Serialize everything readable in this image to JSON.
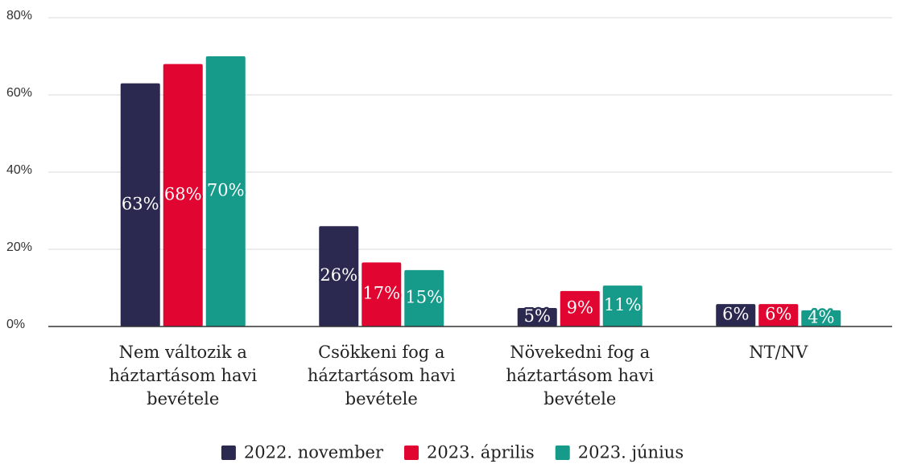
{
  "chart_data": {
    "type": "bar",
    "categories": [
      "Nem változik a háztartásom havi bevétele",
      "Csökkeni fog a háztartásom havi bevétele",
      "Növekedni fog a háztartásom havi bevétele",
      "NT/NV"
    ],
    "series": [
      {
        "name": "2022. november",
        "color": "#2b2950",
        "values": [
          63,
          26,
          4.8,
          5.8
        ],
        "value_labels": [
          "63%",
          "26%",
          "5%",
          "6%"
        ]
      },
      {
        "name": "2023. április",
        "color": "#e10531",
        "values": [
          68,
          16.6,
          9.2,
          5.8
        ],
        "value_labels": [
          "68%",
          "17%",
          "9%",
          "6%"
        ]
      },
      {
        "name": "2023. június",
        "color": "#169a8a",
        "values": [
          70,
          14.6,
          10.6,
          4.2
        ],
        "value_labels": [
          "70%",
          "15%",
          "11%",
          "4%"
        ]
      }
    ],
    "ylim": [
      0,
      80
    ],
    "yticks": [
      {
        "value": 0,
        "label": "0%"
      },
      {
        "value": 20,
        "label": "20%"
      },
      {
        "value": 40,
        "label": "40%"
      },
      {
        "value": 60,
        "label": "60%"
      },
      {
        "value": 80,
        "label": "80%"
      }
    ],
    "grid": true
  }
}
